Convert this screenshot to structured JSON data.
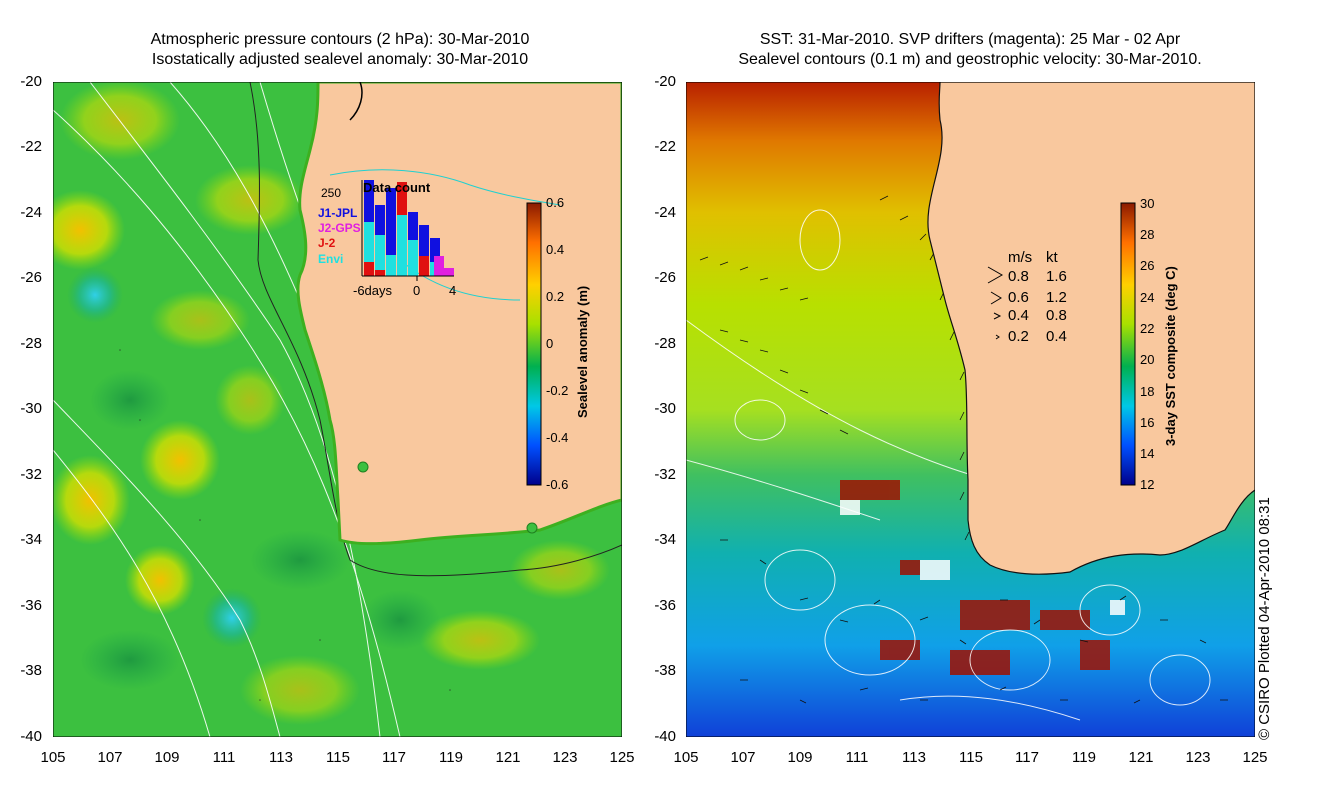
{
  "left_panel": {
    "title_line1": "Atmospheric pressure contours (2 hPa): 30-Mar-2010",
    "title_line2": "Isostatically adjusted sealevel anomaly: 30-Mar-2010",
    "colorbar": {
      "label": "Sealevel anomaly (m)",
      "ticks": [
        "0.6",
        "0.4",
        "0.2",
        "0",
        "-0.2",
        "-0.4",
        "-0.6"
      ],
      "range": [
        -0.6,
        0.6
      ],
      "colors": [
        "#00008b",
        "#0050ff",
        "#00c8e6",
        "#00b050",
        "#a8e000",
        "#ffd000",
        "#ff7000",
        "#8b1a00"
      ]
    },
    "inset": {
      "title": "Data count",
      "max_label": "250",
      "x_labels": [
        "-6days",
        "0",
        "4"
      ],
      "missions": [
        {
          "name": "J1-JPL",
          "color": "#1010e0"
        },
        {
          "name": "J2-GPS",
          "color": "#e020e0"
        },
        {
          "name": "J-2",
          "color": "#e01010"
        },
        {
          "name": "Envi",
          "color": "#20e0e0"
        }
      ]
    }
  },
  "right_panel": {
    "title_line1": "SST: 31-Mar-2010. SVP drifters (magenta): 25 Mar - 02 Apr",
    "title_line2": "Sealevel contours (0.1 m) and geostrophic velocity: 30-Mar-2010.",
    "colorbar": {
      "label": "3-day SST composite (deg C)",
      "ticks": [
        "30",
        "28",
        "26",
        "24",
        "22",
        "20",
        "18",
        "16",
        "14",
        "12"
      ],
      "range": [
        12,
        30
      ],
      "colors": [
        "#00008b",
        "#0050ff",
        "#00c8e6",
        "#00b050",
        "#a8e000",
        "#ffd000",
        "#ff7000",
        "#8b1a00"
      ]
    },
    "velocity_legend": {
      "header_ms": "m/s",
      "header_kt": "kt",
      "rows": [
        {
          "ms": "0.8",
          "kt": "1.6"
        },
        {
          "ms": "0.6",
          "kt": "1.2"
        },
        {
          "ms": "0.4",
          "kt": "0.8"
        },
        {
          "ms": "0.2",
          "kt": "0.4"
        }
      ]
    }
  },
  "axes": {
    "lat_ticks": [
      "-20",
      "-22",
      "-24",
      "-26",
      "-28",
      "-30",
      "-32",
      "-34",
      "-36",
      "-38",
      "-40"
    ],
    "lon_ticks": [
      "105",
      "107",
      "109",
      "111",
      "113",
      "115",
      "117",
      "119",
      "121",
      "123",
      "125"
    ]
  },
  "credit": "© CSIRO Plotted 04-Apr-2010 08:31",
  "colors": {
    "land": "#f9c89e",
    "contour": "#ffffff",
    "coast_line": "#000000"
  }
}
